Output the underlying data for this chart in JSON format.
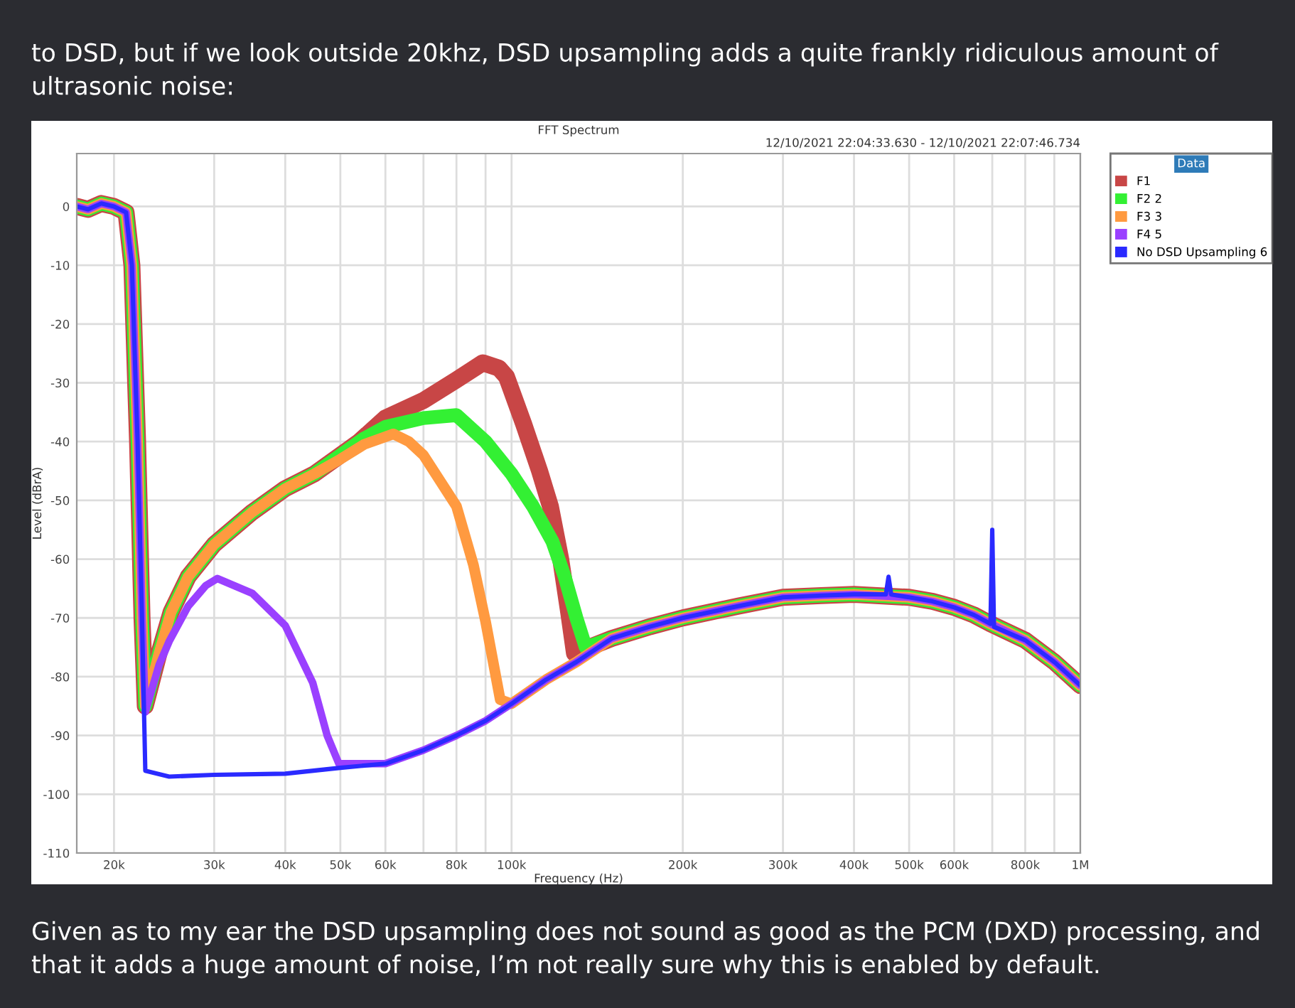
{
  "chart_data": {
    "type": "line",
    "title": "FFT Spectrum",
    "subtitle": "12/10/2021 22:04:33.630 - 12/10/2021 22:07:46.734",
    "xlabel": "Frequency (Hz)",
    "ylabel": "Level (dBrA)",
    "legend_title": "Data",
    "annotations": [
      "to DSD, but if we look outside 20khz, DSD upsampling adds a quite frankly ridiculous amount of ultrasonic noise:",
      "Given as to my ear the DSD upsampling does not sound as good as the PCM (DXD) processing, and that it adds a huge amount of noise, I’m not really sure why this is enabled by default."
    ],
    "log": "x",
    "grid": true,
    "legend": "top right",
    "marker": "none",
    "line_style": "solid",
    "xlim": [
      17200,
      1000000
    ],
    "ylim": [
      -110,
      9
    ],
    "xticks": [
      {
        "value": 20000,
        "label": "20k"
      },
      {
        "value": 30000,
        "label": "30k"
      },
      {
        "value": 40000,
        "label": "40k"
      },
      {
        "value": 50000,
        "label": "50k"
      },
      {
        "value": 60000,
        "label": "60k"
      },
      {
        "value": 70000,
        "label": null
      },
      {
        "value": 80000,
        "label": "80k"
      },
      {
        "value": 90000,
        "label": null
      },
      {
        "value": 100000,
        "label": "100k"
      },
      {
        "value": 200000,
        "label": "200k"
      },
      {
        "value": 300000,
        "label": "300k"
      },
      {
        "value": 400000,
        "label": "400k"
      },
      {
        "value": 500000,
        "label": "500k"
      },
      {
        "value": 600000,
        "label": "600k"
      },
      {
        "value": 700000,
        "label": null
      },
      {
        "value": 800000,
        "label": "800k"
      },
      {
        "value": 900000,
        "label": null
      },
      {
        "value": 1000000,
        "label": "1M"
      }
    ],
    "yticks": [
      0,
      -10,
      -20,
      -30,
      -40,
      -50,
      -60,
      -70,
      -80,
      -90,
      -100,
      -110
    ],
    "series": [
      {
        "name": "F1",
        "color": "#c84646",
        "x": [
          17200,
          18000,
          19000,
          20000,
          21000,
          21500,
          22000,
          22400,
          22700,
          24000,
          25200,
          27000,
          30000,
          35000,
          40000,
          45000,
          54000,
          60000,
          70000,
          80000,
          89000,
          95000,
          98000,
          105000,
          112000,
          117000,
          122000,
          126000,
          129000,
          150000,
          175000,
          200000,
          250000,
          300000,
          350000,
          400000,
          500000,
          550000,
          600000,
          650000,
          695000,
          800000,
          900000,
          1000000
        ],
        "values": [
          0,
          -0.5,
          0.5,
          0,
          -1,
          -10,
          -40,
          -70,
          -85,
          -76,
          -69,
          -63,
          -57.5,
          -52,
          -48,
          -45.5,
          -40,
          -36,
          -33,
          -29.5,
          -26.6,
          -27.5,
          -29,
          -37,
          -45,
          -51,
          -60,
          -69,
          -76,
          -73.5,
          -71.5,
          -70,
          -68,
          -66.5,
          -66.2,
          -66,
          -66.5,
          -67.2,
          -68.2,
          -69.5,
          -71,
          -73.8,
          -77.5,
          -81.5
        ]
      },
      {
        "name": "F2 2",
        "color": "#33f033",
        "x": [
          17200,
          18000,
          19000,
          20000,
          21000,
          21500,
          22000,
          22400,
          22700,
          24000,
          25200,
          27000,
          30000,
          35000,
          40000,
          45000,
          55000,
          60000,
          70000,
          80000,
          90000,
          100000,
          109000,
          118000,
          124000,
          130000,
          135000,
          150000,
          175000,
          200000,
          250000,
          300000,
          350000,
          400000,
          500000,
          550000,
          600000,
          650000,
          695000,
          800000,
          900000,
          1000000
        ],
        "values": [
          0,
          -0.5,
          0.5,
          0,
          -1,
          -10,
          -40,
          -70,
          -85,
          -76,
          -69,
          -63,
          -57.5,
          -52,
          -48,
          -45.5,
          -39.5,
          -37.5,
          -36,
          -35.5,
          -40,
          -45.5,
          -51,
          -57,
          -63,
          -70,
          -75,
          -73.5,
          -71.5,
          -70,
          -68,
          -66.5,
          -66.2,
          -66,
          -66.5,
          -67.2,
          -68.2,
          -69.5,
          -71,
          -73.8,
          -77.5,
          -81.5
        ]
      },
      {
        "name": "F3 3",
        "color": "#ff9a40",
        "x": [
          17200,
          18000,
          19000,
          20000,
          21000,
          21500,
          22000,
          22400,
          22700,
          24000,
          25200,
          27000,
          30000,
          35000,
          40000,
          45000,
          50000,
          55000,
          62000,
          66000,
          70000,
          80000,
          85700,
          90000,
          95500,
          100000,
          115000,
          130000,
          150000,
          175000,
          200000,
          250000,
          300000,
          350000,
          400000,
          500000,
          550000,
          600000,
          650000,
          695000,
          800000,
          900000,
          1000000
        ],
        "values": [
          0,
          -0.5,
          0.5,
          0,
          -1,
          -10,
          -40,
          -70,
          -85,
          -76,
          -69,
          -63,
          -57.5,
          -52,
          -48,
          -45.5,
          -43,
          -40.5,
          -38.7,
          -40,
          -42.3,
          -51,
          -61,
          -70.6,
          -83.9,
          -84.6,
          -80.5,
          -77.5,
          -73.5,
          -71.5,
          -70,
          -68,
          -66.5,
          -66.2,
          -66,
          -66.5,
          -67.2,
          -68.2,
          -69.5,
          -71,
          -73.8,
          -77.5,
          -81.5
        ]
      },
      {
        "name": "F4 5",
        "color": "#9a40ff",
        "x": [
          17200,
          18000,
          19000,
          20000,
          21000,
          21500,
          22000,
          22400,
          22700,
          24000,
          25000,
          27000,
          29000,
          30400,
          35000,
          40000,
          44700,
          47400,
          49700,
          60000,
          70000,
          80000,
          90000,
          100000,
          115000,
          130000,
          150000,
          175000,
          200000,
          250000,
          300000,
          350000,
          400000,
          500000,
          550000,
          600000,
          650000,
          695000,
          800000,
          900000,
          1000000
        ],
        "values": [
          0,
          -0.5,
          0.5,
          0,
          -1,
          -10,
          -40,
          -70,
          -86,
          -78,
          -74,
          -68,
          -64.5,
          -63.3,
          -65.8,
          -71.3,
          -81,
          -90,
          -94.8,
          -94.8,
          -92.5,
          -90,
          -87.5,
          -84.6,
          -80.5,
          -77.5,
          -73.5,
          -71.5,
          -70,
          -68,
          -66.5,
          -66.2,
          -66,
          -66.5,
          -67.2,
          -68.2,
          -69.5,
          -71,
          -73.8,
          -77.5,
          -81.5
        ]
      },
      {
        "name": "No DSD Upsampling 6",
        "color": "#2a2aff",
        "x": [
          17200,
          18000,
          19000,
          20000,
          21000,
          21500,
          22000,
          22400,
          22700,
          25000,
          30000,
          40000,
          50000,
          60000,
          70000,
          80000,
          90000,
          100000,
          115000,
          130000,
          150000,
          175000,
          200000,
          250000,
          300000,
          350000,
          400000,
          455000,
          460000,
          465000,
          500000,
          550000,
          600000,
          650000,
          695000,
          700000,
          705000,
          800000,
          900000,
          1000000
        ],
        "values": [
          0,
          -0.5,
          0.5,
          0,
          -1,
          -10,
          -40,
          -70,
          -96,
          -97,
          -96.7,
          -96.5,
          -95.5,
          -94.8,
          -92.5,
          -90,
          -87.5,
          -84.6,
          -80.5,
          -77.5,
          -73.5,
          -71.5,
          -70,
          -68,
          -66.5,
          -66.2,
          -66,
          -66,
          -63,
          -66,
          -66.5,
          -67.2,
          -68.2,
          -69.5,
          -71,
          -55,
          -71.5,
          -73.8,
          -77.5,
          -81.5
        ]
      }
    ]
  }
}
